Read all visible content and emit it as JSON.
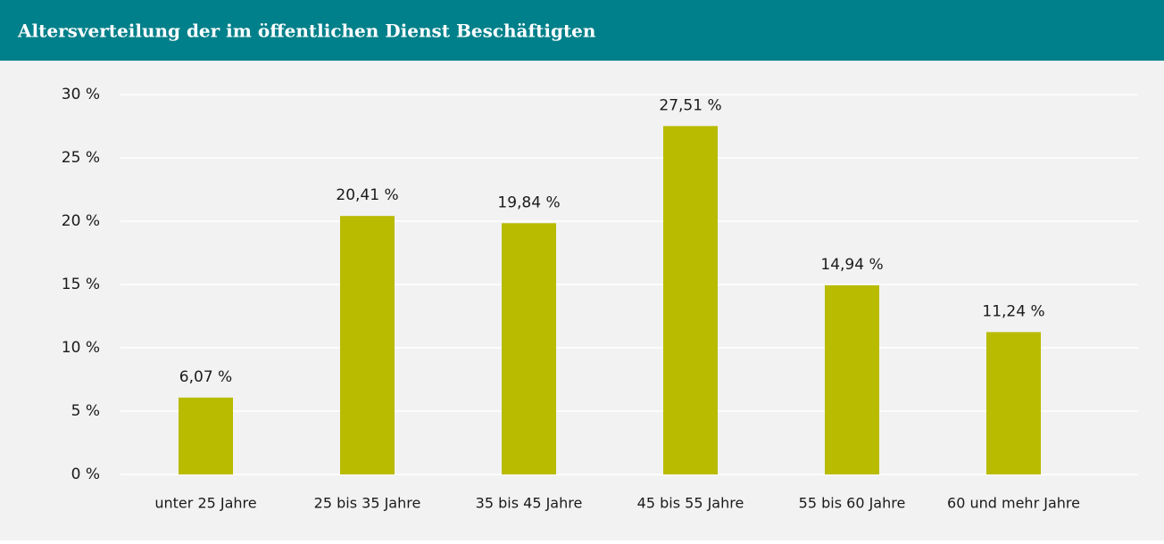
{
  "chart_data": {
    "type": "bar",
    "title": "Altersverteilung der im öffentlichen Dienst Beschäftigten",
    "categories": [
      "unter 25 Jahre",
      "25 bis 35 Jahre",
      "35 bis 45 Jahre",
      "45 bis 55 Jahre",
      "55 bis 60 Jahre",
      "60 und mehr Jahre"
    ],
    "values": [
      6.07,
      20.41,
      19.84,
      27.51,
      14.94,
      11.24
    ],
    "value_labels": [
      "6,07 %",
      "20,41 %",
      "19,84 %",
      "27,51 %",
      "14,94 %",
      "11,24 %"
    ],
    "color": "#b8bb00",
    "ylim": [
      0,
      30
    ],
    "yticks": [
      {
        "value": 0,
        "label": "0 %"
      },
      {
        "value": 5,
        "label": "5 %"
      },
      {
        "value": 10,
        "label": "10 %"
      },
      {
        "value": 15,
        "label": "15 %"
      },
      {
        "value": 20,
        "label": "20 %"
      },
      {
        "value": 25,
        "label": "25 %"
      },
      {
        "value": 30,
        "label": "30 %"
      }
    ],
    "grid": true
  }
}
